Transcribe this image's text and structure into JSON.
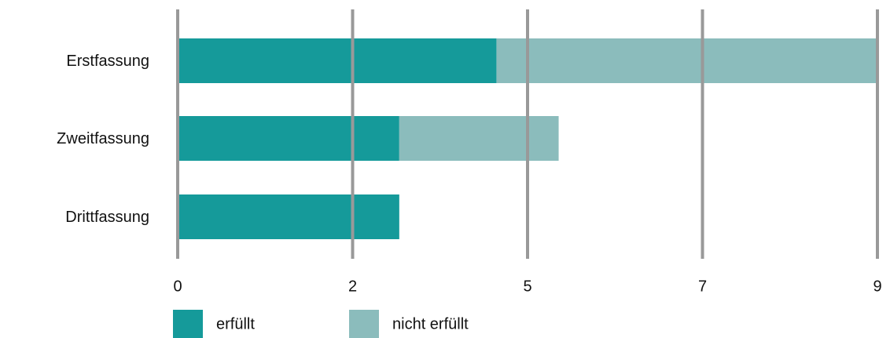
{
  "chart_data": {
    "type": "stacked-barh",
    "categories": [
      "Erstfassung",
      "Zweitfassung",
      "Drittfassung"
    ],
    "series": [
      {
        "name": "erfüllt",
        "color": "#159a9a",
        "values": [
          4.1,
          2.85,
          2.85
        ]
      },
      {
        "name": "nicht erfüllt",
        "color": "#8bbcbc",
        "values": [
          4.9,
          2.05,
          0
        ]
      }
    ],
    "xlim": [
      0,
      9
    ],
    "xticks": [
      0,
      {
        "value": 2.25,
        "label": "2"
      },
      {
        "value": 4.5,
        "label": "5"
      },
      {
        "value": 6.75,
        "label": "7"
      },
      9
    ],
    "grid": true,
    "legend": "bottom"
  }
}
